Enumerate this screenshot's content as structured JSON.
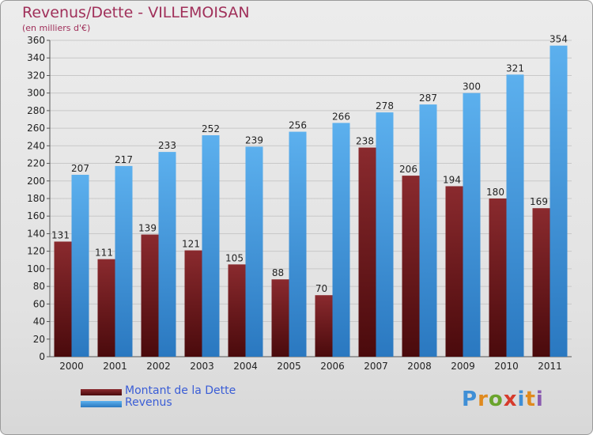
{
  "header": {
    "title": "Revenus/Dette - VILLEMOISAN",
    "subtitle": "(en milliers d'€)"
  },
  "legend": [
    {
      "label": "Montant de la Dette",
      "color": "#6b1518"
    },
    {
      "label": "Revenus",
      "color": "#3f93d9"
    }
  ],
  "logo": {
    "letters": [
      "P",
      "r",
      "o",
      "x",
      "i",
      "t",
      "i"
    ],
    "colors": [
      "#3f8fd6",
      "#e08a1e",
      "#6aa42c",
      "#d63b2c",
      "#3f8fd6",
      "#e08a1e",
      "#8a5ab0"
    ]
  },
  "colors": {
    "dette_top": "#8a2a2e",
    "dette_bottom": "#4a0a0c",
    "revenus_top": "#5cb0ee",
    "revenus_bottom": "#2a78c0",
    "axis_text": "#222222",
    "grid": "#c8c8c8"
  },
  "chart_data": {
    "type": "bar",
    "categories": [
      "2000",
      "2001",
      "2002",
      "2003",
      "2004",
      "2005",
      "2006",
      "2007",
      "2008",
      "2009",
      "2010",
      "2011"
    ],
    "series": [
      {
        "name": "Montant de la Dette",
        "values": [
          131,
          111,
          139,
          121,
          105,
          88,
          70,
          238,
          206,
          194,
          180,
          169
        ]
      },
      {
        "name": "Revenus",
        "values": [
          207,
          217,
          233,
          252,
          239,
          256,
          266,
          278,
          287,
          300,
          321,
          354
        ]
      }
    ],
    "title": "Revenus/Dette - VILLEMOISAN",
    "ylabel": "(en milliers d'€)",
    "ylim": [
      0,
      360
    ],
    "yticks": [
      0,
      20,
      40,
      60,
      80,
      100,
      120,
      140,
      160,
      180,
      200,
      220,
      240,
      260,
      280,
      300,
      320,
      340,
      360
    ],
    "grid": true
  }
}
